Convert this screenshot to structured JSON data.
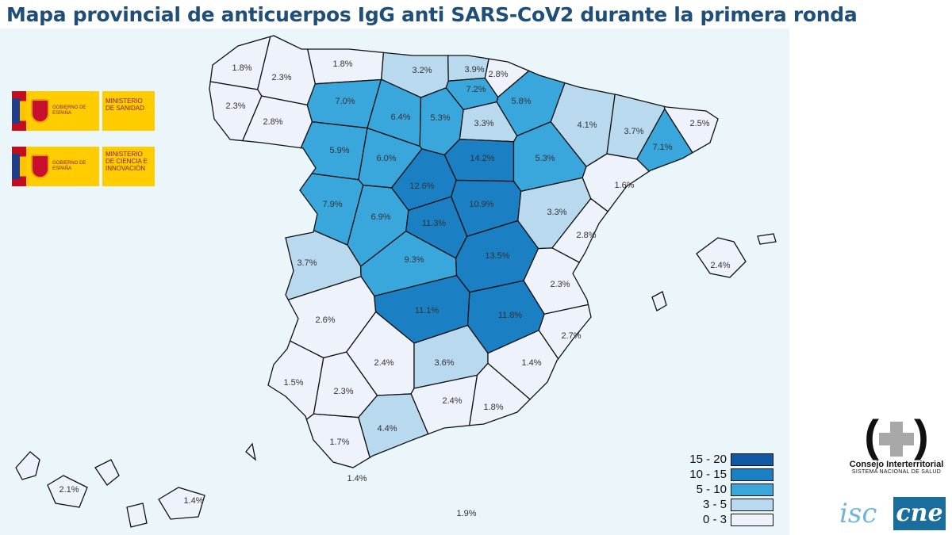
{
  "title": "Mapa provincial de anticuerpos IgG anti SARS-CoV2 durante la primera ronda",
  "logos": {
    "gobierno": "GOBIERNO DE ESPAÑA",
    "ministerio_sanidad": "MINISTERIO DE SANIDAD",
    "ministerio_ciencia": "MINISTERIO DE CIENCIA E INNOVACIÓN",
    "consejo": "Consejo Interterritorial",
    "sistema": "SISTEMA NACIONAL DE SALUD",
    "isc": "isc",
    "cne": "cne"
  },
  "legend": [
    {
      "label": "15 - 20",
      "color": "#0f58a6"
    },
    {
      "label": "10 - 15",
      "color": "#1b7fc3"
    },
    {
      "label": "5 - 10",
      "color": "#3aa7dc"
    },
    {
      "label": "3 - 5",
      "color": "#b9daee"
    },
    {
      "label": "0 - 3",
      "color": "#eef2fb"
    }
  ],
  "provinces": [
    {
      "value": "1.8%",
      "bin": 4
    },
    {
      "value": "1.8%",
      "bin": 4
    },
    {
      "value": "2.3%",
      "bin": 4
    },
    {
      "value": "2.3%",
      "bin": 4
    },
    {
      "value": "2.8%",
      "bin": 4
    },
    {
      "value": "7.0%",
      "bin": 2
    },
    {
      "value": "3.2%",
      "bin": 3
    },
    {
      "value": "3.9%",
      "bin": 3
    },
    {
      "value": "2.8%",
      "bin": 4
    },
    {
      "value": "7.2%",
      "bin": 2
    },
    {
      "value": "5.8%",
      "bin": 2
    },
    {
      "value": "6.4%",
      "bin": 2
    },
    {
      "value": "5.3%",
      "bin": 2
    },
    {
      "value": "3.3%",
      "bin": 3
    },
    {
      "value": "4.1%",
      "bin": 3
    },
    {
      "value": "3.7%",
      "bin": 3
    },
    {
      "value": "2.5%",
      "bin": 4
    },
    {
      "value": "7.1%",
      "bin": 2
    },
    {
      "value": "5.9%",
      "bin": 2
    },
    {
      "value": "6.0%",
      "bin": 2
    },
    {
      "value": "14.2%",
      "bin": 1
    },
    {
      "value": "5.3%",
      "bin": 2
    },
    {
      "value": "1.6%",
      "bin": 4
    },
    {
      "value": "12.6%",
      "bin": 1
    },
    {
      "value": "10.9%",
      "bin": 1
    },
    {
      "value": "7.9%",
      "bin": 2
    },
    {
      "value": "6.9%",
      "bin": 2
    },
    {
      "value": "11.3%",
      "bin": 1
    },
    {
      "value": "3.3%",
      "bin": 3
    },
    {
      "value": "2.8%",
      "bin": 4
    },
    {
      "value": "3.7%",
      "bin": 3
    },
    {
      "value": "9.3%",
      "bin": 2
    },
    {
      "value": "13.5%",
      "bin": 1
    },
    {
      "value": "2.3%",
      "bin": 4
    },
    {
      "value": "2.6%",
      "bin": 4
    },
    {
      "value": "11.1%",
      "bin": 1
    },
    {
      "value": "11.8%",
      "bin": 1
    },
    {
      "value": "2.7%",
      "bin": 4
    },
    {
      "value": "2.4%",
      "bin": 4
    },
    {
      "value": "3.6%",
      "bin": 3
    },
    {
      "value": "1.4%",
      "bin": 4
    },
    {
      "value": "1.5%",
      "bin": 4
    },
    {
      "value": "2.3%",
      "bin": 4
    },
    {
      "value": "2.4%",
      "bin": 4
    },
    {
      "value": "1.8%",
      "bin": 4
    },
    {
      "value": "4.4%",
      "bin": 3
    },
    {
      "value": "1.7%",
      "bin": 4
    }
  ],
  "islands": [
    {
      "value": "2.4%",
      "bin": 4
    },
    {
      "value": "2.1%",
      "bin": 4
    },
    {
      "value": "1.4%",
      "bin": 4
    }
  ],
  "ceuta": {
    "value": "1.4%"
  },
  "melilla": {
    "value": "1.9%"
  }
}
